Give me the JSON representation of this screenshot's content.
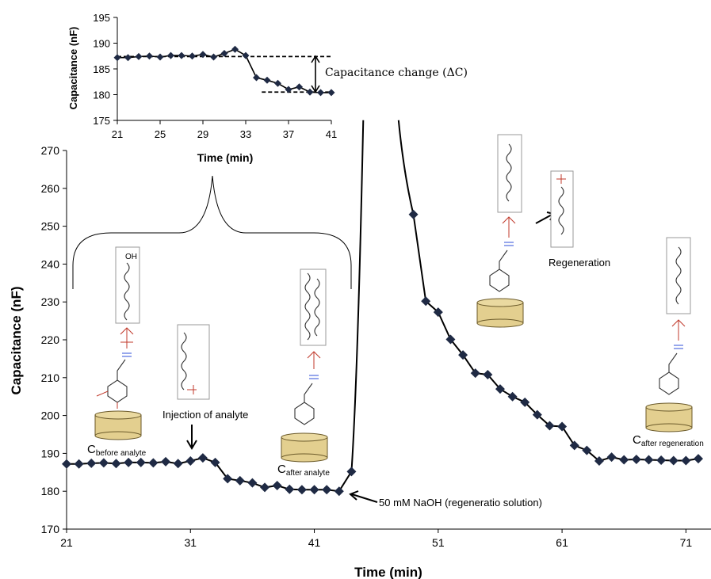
{
  "colors": {
    "marker": "#1f2a44",
    "line": "#000000",
    "disk": "#e3cf8f",
    "disk_edge": "#6b5a2a"
  },
  "chart_data": [
    {
      "type": "line",
      "id": "main",
      "xlabel": "Time (min)",
      "ylabel": "Capacitance (nF)",
      "xlim": [
        21,
        72
      ],
      "ylim": [
        170,
        270
      ],
      "xticks": [
        21,
        31,
        41,
        51,
        61,
        71
      ],
      "yticks": [
        170,
        180,
        190,
        200,
        210,
        220,
        230,
        240,
        250,
        260,
        270
      ],
      "grid": false,
      "series": [
        {
          "points": [
            [
              21,
              187.2
            ],
            [
              22,
              187.2
            ],
            [
              23,
              187.4
            ],
            [
              24,
              187.5
            ],
            [
              25,
              187.3
            ],
            [
              26,
              187.6
            ],
            [
              27,
              187.6
            ],
            [
              28,
              187.5
            ],
            [
              29,
              187.8
            ],
            [
              30,
              187.3
            ],
            [
              31,
              188
            ],
            [
              32,
              188.8
            ],
            [
              33,
              187.6
            ],
            [
              34,
              183.3
            ],
            [
              35,
              182.8
            ],
            [
              36,
              182.2
            ],
            [
              37,
              181
            ],
            [
              38,
              181.5
            ],
            [
              39,
              180.5
            ],
            [
              40,
              180.4
            ],
            [
              41,
              180.4
            ],
            [
              42,
              180.4
            ],
            [
              43,
              180
            ],
            [
              44,
              185.2
            ],
            [
              49,
              253.1
            ],
            [
              50,
              230.2
            ],
            [
              51,
              227.3
            ],
            [
              52,
              220.1
            ],
            [
              53,
              216
            ],
            [
              54,
              211.2
            ],
            [
              55,
              210.8
            ],
            [
              56,
              207
            ],
            [
              57,
              205
            ],
            [
              58,
              203.5
            ],
            [
              59,
              200.2
            ],
            [
              60,
              197.3
            ],
            [
              61,
              197.1
            ],
            [
              62,
              192.1
            ],
            [
              63,
              190.8
            ],
            [
              64,
              188
            ],
            [
              65,
              189
            ],
            [
              66,
              188.3
            ],
            [
              67,
              188.4
            ],
            [
              68,
              188.3
            ],
            [
              69,
              188.2
            ],
            [
              70,
              188.1
            ],
            [
              71,
              188.1
            ],
            [
              72,
              188.6
            ]
          ]
        }
      ],
      "annotations": [
        {
          "text_main": "C",
          "text_sub": "before analyte"
        },
        {
          "text": "Injection of analyte"
        },
        {
          "text_main": "C",
          "text_sub": "after  analyte"
        },
        {
          "text": "50 mM NaOH (regeneratio solution)"
        },
        {
          "text": "Regeneration"
        },
        {
          "text_main": "C",
          "text_sub": "after regeneration"
        }
      ]
    },
    {
      "type": "line",
      "id": "inset",
      "xlabel": "Time (min)",
      "ylabel": "Capacitance (nF)",
      "xlim": [
        21,
        41
      ],
      "ylim": [
        175,
        195
      ],
      "xticks": [
        21,
        25,
        29,
        33,
        37,
        41
      ],
      "yticks": [
        175,
        180,
        185,
        190,
        195
      ],
      "grid": false,
      "series": [
        {
          "points": [
            [
              21,
              187.2
            ],
            [
              22,
              187.2
            ],
            [
              23,
              187.4
            ],
            [
              24,
              187.5
            ],
            [
              25,
              187.3
            ],
            [
              26,
              187.6
            ],
            [
              27,
              187.6
            ],
            [
              28,
              187.5
            ],
            [
              29,
              187.8
            ],
            [
              30,
              187.3
            ],
            [
              31,
              188
            ],
            [
              32,
              188.8
            ],
            [
              33,
              187.6
            ],
            [
              34,
              183.3
            ],
            [
              35,
              182.8
            ],
            [
              36,
              182.2
            ],
            [
              37,
              181
            ],
            [
              38,
              181.5
            ],
            [
              39,
              180.5
            ],
            [
              40,
              180.4
            ],
            [
              41,
              180.4
            ]
          ]
        }
      ],
      "reference_lines": [
        187.4,
        180.5
      ],
      "annotation": "Capacitance change (ΔC)"
    }
  ]
}
